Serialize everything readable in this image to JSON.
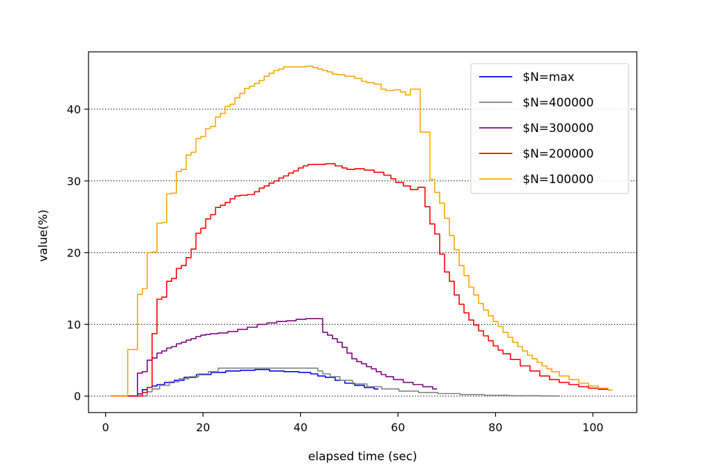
{
  "chart_data": {
    "type": "line",
    "xlabel": "elapsed time (sec)",
    "ylabel": "value(%)",
    "xlim": [
      -3.5,
      109
    ],
    "ylim": [
      -2.3,
      48
    ],
    "xticks": [
      0,
      20,
      40,
      60,
      80,
      100
    ],
    "yticks": [
      0,
      10,
      20,
      30,
      40
    ],
    "grid": "y-dotted",
    "legend_position": "top-right",
    "step": true,
    "series": [
      {
        "name": "$N=max",
        "color": "#0000ff",
        "points": [
          [
            1,
            0
          ],
          [
            6,
            0
          ],
          [
            7,
            0.3
          ],
          [
            8,
            0.9
          ],
          [
            9,
            1.2
          ],
          [
            10,
            1.4
          ],
          [
            11,
            1.6
          ],
          [
            13,
            1.9
          ],
          [
            15,
            2.2
          ],
          [
            17,
            2.6
          ],
          [
            20,
            3.0
          ],
          [
            23,
            3.3
          ],
          [
            26,
            3.5
          ],
          [
            29,
            3.6
          ],
          [
            32,
            3.7
          ],
          [
            35,
            3.5
          ],
          [
            38,
            3.4
          ],
          [
            41,
            3.3
          ],
          [
            43,
            3.1
          ],
          [
            44,
            2.8
          ],
          [
            46,
            2.6
          ],
          [
            48,
            2.2
          ],
          [
            50,
            1.8
          ],
          [
            52,
            1.5
          ],
          [
            54,
            1.2
          ],
          [
            56,
            1.0
          ]
        ]
      },
      {
        "name": "$N=400000",
        "color": "#808080",
        "points": [
          [
            1,
            0
          ],
          [
            8,
            0
          ],
          [
            9,
            0.6
          ],
          [
            10,
            1.0
          ],
          [
            12,
            1.5
          ],
          [
            14,
            2.0
          ],
          [
            16,
            2.4
          ],
          [
            18,
            2.7
          ],
          [
            20,
            3.1
          ],
          [
            22,
            3.4
          ],
          [
            24,
            3.9
          ],
          [
            30,
            3.9
          ],
          [
            35,
            3.9
          ],
          [
            40,
            3.9
          ],
          [
            43,
            3.9
          ],
          [
            44,
            3.5
          ],
          [
            45,
            3.1
          ],
          [
            47,
            2.7
          ],
          [
            49,
            2.2
          ],
          [
            52,
            1.7
          ],
          [
            55,
            1.3
          ],
          [
            58,
            1.0
          ],
          [
            62,
            0.7
          ],
          [
            66,
            0.5
          ],
          [
            70,
            0.35
          ],
          [
            75,
            0.2
          ],
          [
            80,
            0.1
          ],
          [
            85,
            0.05
          ],
          [
            93,
            0.02
          ]
        ]
      },
      {
        "name": "$N=300000",
        "color": "#800080",
        "points": [
          [
            1,
            0
          ],
          [
            6,
            0
          ],
          [
            7,
            3.2
          ],
          [
            8,
            3.4
          ],
          [
            9,
            5.0
          ],
          [
            10,
            5.3
          ],
          [
            11,
            6.0
          ],
          [
            12,
            6.3
          ],
          [
            13,
            6.7
          ],
          [
            14,
            6.9
          ],
          [
            15,
            7.3
          ],
          [
            16,
            7.5
          ],
          [
            17,
            7.8
          ],
          [
            18,
            8.0
          ],
          [
            19,
            8.3
          ],
          [
            20,
            8.5
          ],
          [
            21,
            8.6
          ],
          [
            22,
            8.7
          ],
          [
            24,
            8.8
          ],
          [
            26,
            9.0
          ],
          [
            28,
            9.3
          ],
          [
            30,
            9.6
          ],
          [
            32,
            10.0
          ],
          [
            34,
            10.2
          ],
          [
            36,
            10.4
          ],
          [
            38,
            10.5
          ],
          [
            40,
            10.7
          ],
          [
            42,
            10.8
          ],
          [
            44,
            10.8
          ],
          [
            45,
            8.9
          ],
          [
            46,
            8.5
          ],
          [
            47,
            8.0
          ],
          [
            48,
            7.5
          ],
          [
            49,
            6.8
          ],
          [
            50,
            6.0
          ],
          [
            51,
            5.2
          ],
          [
            52,
            4.8
          ],
          [
            53,
            4.5
          ],
          [
            54,
            4.1
          ],
          [
            55,
            3.8
          ],
          [
            56,
            3.4
          ],
          [
            57,
            3.0
          ],
          [
            58,
            2.7
          ],
          [
            60,
            2.3
          ],
          [
            62,
            1.9
          ],
          [
            64,
            1.6
          ],
          [
            66,
            1.3
          ],
          [
            68,
            1.0
          ]
        ]
      },
      {
        "name": "$N=200000",
        "color": "#ff0000",
        "points": [
          [
            1,
            0
          ],
          [
            7,
            0
          ],
          [
            8,
            0.5
          ],
          [
            9,
            1.2
          ],
          [
            10,
            8.7
          ],
          [
            11,
            13.5
          ],
          [
            12,
            13.8
          ],
          [
            13,
            16.0
          ],
          [
            14,
            16.4
          ],
          [
            15,
            17.8
          ],
          [
            16,
            18.2
          ],
          [
            17,
            19.3
          ],
          [
            18,
            20.5
          ],
          [
            19,
            22.7
          ],
          [
            20,
            23.4
          ],
          [
            21,
            24.7
          ],
          [
            22,
            25.3
          ],
          [
            23,
            26.3
          ],
          [
            24,
            26.6
          ],
          [
            25,
            27.0
          ],
          [
            26,
            27.5
          ],
          [
            27,
            27.9
          ],
          [
            28,
            28.0
          ],
          [
            30,
            28.1
          ],
          [
            31,
            28.5
          ],
          [
            32,
            29.0
          ],
          [
            33,
            29.3
          ],
          [
            34,
            29.7
          ],
          [
            35,
            30.0
          ],
          [
            36,
            30.4
          ],
          [
            37,
            30.7
          ],
          [
            38,
            31.1
          ],
          [
            39,
            31.4
          ],
          [
            40,
            31.8
          ],
          [
            41,
            32.1
          ],
          [
            42,
            32.3
          ],
          [
            44,
            32.3
          ],
          [
            46,
            32.4
          ],
          [
            48,
            32.1
          ],
          [
            49,
            31.8
          ],
          [
            50,
            31.6
          ],
          [
            52,
            31.7
          ],
          [
            54,
            31.5
          ],
          [
            56,
            31.2
          ],
          [
            58,
            30.8
          ],
          [
            59,
            30.3
          ],
          [
            60,
            29.8
          ],
          [
            62,
            29.3
          ],
          [
            63,
            28.8
          ],
          [
            65,
            29.1
          ],
          [
            66,
            26.4
          ],
          [
            67,
            24.0
          ],
          [
            68,
            22.6
          ],
          [
            69,
            19.8
          ],
          [
            70,
            17.3
          ],
          [
            71,
            16.0
          ],
          [
            72,
            14.1
          ],
          [
            73,
            12.8
          ],
          [
            74,
            11.6
          ],
          [
            75,
            10.6
          ],
          [
            76,
            9.9
          ],
          [
            77,
            9.1
          ],
          [
            78,
            8.4
          ],
          [
            79,
            7.7
          ],
          [
            80,
            7.0
          ],
          [
            81,
            6.4
          ],
          [
            82,
            5.9
          ],
          [
            84,
            5.1
          ],
          [
            86,
            4.2
          ],
          [
            88,
            3.5
          ],
          [
            90,
            2.8
          ],
          [
            92,
            2.3
          ],
          [
            94,
            1.9
          ],
          [
            96,
            1.6
          ],
          [
            98,
            1.3
          ],
          [
            100,
            1.1
          ],
          [
            102,
            0.95
          ],
          [
            104,
            0.85
          ]
        ]
      },
      {
        "name": "$N=100000",
        "color": "#ffa500",
        "points": [
          [
            1,
            0
          ],
          [
            4,
            0
          ],
          [
            5,
            6.5
          ],
          [
            6,
            6.5
          ],
          [
            7,
            14.2
          ],
          [
            8,
            15.0
          ],
          [
            9,
            20.0
          ],
          [
            10,
            20.1
          ],
          [
            11,
            24.1
          ],
          [
            12,
            24.2
          ],
          [
            13,
            28.2
          ],
          [
            14,
            28.3
          ],
          [
            15,
            31.3
          ],
          [
            16,
            31.6
          ],
          [
            17,
            33.6
          ],
          [
            18,
            34.0
          ],
          [
            19,
            35.9
          ],
          [
            20,
            36.2
          ],
          [
            21,
            37.3
          ],
          [
            22,
            37.6
          ],
          [
            23,
            38.9
          ],
          [
            24,
            39.4
          ],
          [
            25,
            40.4
          ],
          [
            26,
            40.7
          ],
          [
            27,
            41.6
          ],
          [
            28,
            42.2
          ],
          [
            29,
            42.9
          ],
          [
            30,
            43.2
          ],
          [
            31,
            43.6
          ],
          [
            32,
            44.0
          ],
          [
            33,
            44.6
          ],
          [
            34,
            45.0
          ],
          [
            35,
            45.4
          ],
          [
            36,
            45.6
          ],
          [
            37,
            45.9
          ],
          [
            40,
            45.9
          ],
          [
            42,
            46.0
          ],
          [
            43,
            45.8
          ],
          [
            44,
            45.6
          ],
          [
            45,
            45.4
          ],
          [
            46,
            45.2
          ],
          [
            47,
            44.9
          ],
          [
            48,
            44.8
          ],
          [
            50,
            44.6
          ],
          [
            52,
            44.3
          ],
          [
            53,
            43.9
          ],
          [
            54,
            43.7
          ],
          [
            56,
            43.5
          ],
          [
            57,
            42.8
          ],
          [
            58,
            42.6
          ],
          [
            60,
            42.7
          ],
          [
            61,
            42.4
          ],
          [
            62,
            42.0
          ],
          [
            63,
            42.8
          ],
          [
            64,
            42.8
          ],
          [
            65,
            36.8
          ],
          [
            66,
            36.8
          ],
          [
            67,
            30.2
          ],
          [
            68,
            28.4
          ],
          [
            69,
            26.9
          ],
          [
            70,
            24.8
          ],
          [
            71,
            22.4
          ],
          [
            72,
            20.4
          ],
          [
            73,
            18.2
          ],
          [
            74,
            16.8
          ],
          [
            75,
            15.2
          ],
          [
            76,
            14.1
          ],
          [
            77,
            12.9
          ],
          [
            78,
            12.0
          ],
          [
            79,
            11.2
          ],
          [
            80,
            10.4
          ],
          [
            81,
            9.7
          ],
          [
            82,
            8.9
          ],
          [
            83,
            8.2
          ],
          [
            84,
            7.5
          ],
          [
            85,
            6.9
          ],
          [
            86,
            6.3
          ],
          [
            87,
            5.7
          ],
          [
            88,
            5.2
          ],
          [
            89,
            4.7
          ],
          [
            90,
            4.2
          ],
          [
            91,
            3.8
          ],
          [
            92,
            3.4
          ],
          [
            94,
            2.8
          ],
          [
            96,
            2.3
          ],
          [
            98,
            1.8
          ],
          [
            100,
            1.4
          ],
          [
            102,
            1.1
          ],
          [
            104,
            0.85
          ]
        ]
      }
    ]
  }
}
